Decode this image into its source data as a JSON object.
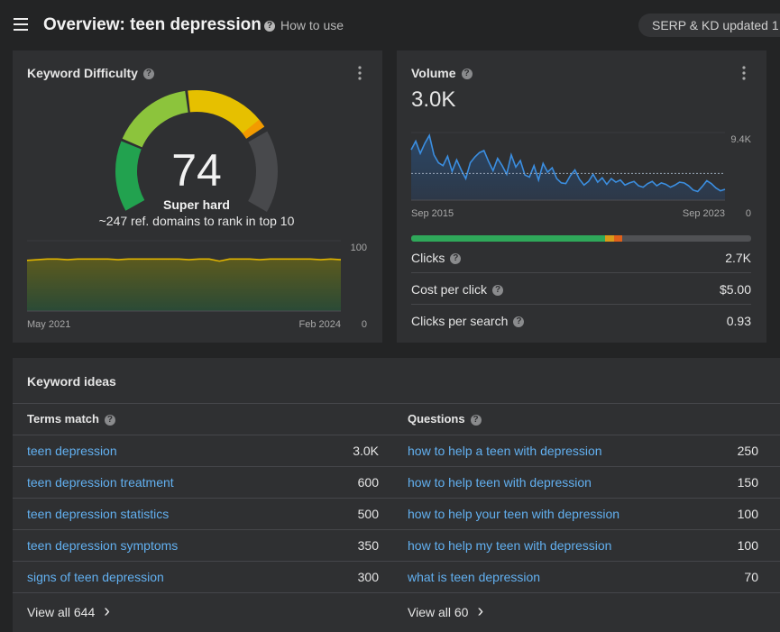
{
  "header": {
    "title": "Overview: teen depression",
    "help": "How to use",
    "status": "SERP & KD updated 1"
  },
  "kd": {
    "title": "Keyword Difficulty",
    "score": 74,
    "level": "Super hard",
    "note": "~247 ref. domains to rank in top 10",
    "chart": {
      "type": "line",
      "x_labels": [
        "May 2021",
        "Feb 2024"
      ],
      "ylim": [
        0,
        100
      ],
      "yticks": [
        0,
        100
      ],
      "color": "#e0b400",
      "values": [
        72,
        73,
        74,
        74,
        73,
        74,
        74,
        74,
        74,
        73,
        74,
        74,
        74,
        74,
        74,
        74,
        73,
        74,
        74,
        71,
        74,
        74,
        74,
        73,
        74,
        74,
        74,
        74,
        74,
        73,
        74,
        73
      ]
    }
  },
  "volume": {
    "title": "Volume",
    "value": "3.0K",
    "chart": {
      "type": "line",
      "x_labels": [
        "Sep 2015",
        "Sep 2023"
      ],
      "ylim": [
        0,
        9400
      ],
      "yticks": [
        0,
        {
          "value": 9400,
          "label": "9.4K"
        }
      ],
      "color": "#3b8ee0",
      "values": [
        7000,
        8200,
        6500,
        7900,
        9000,
        6300,
        5200,
        4800,
        6100,
        4000,
        5600,
        4200,
        3000,
        5200,
        6000,
        6600,
        6900,
        5400,
        4100,
        5800,
        4800,
        3600,
        6300,
        4600,
        5500,
        3500,
        3200,
        4800,
        2800,
        5100,
        3900,
        4500,
        3000,
        2400,
        2300,
        3400,
        4200,
        2900,
        2100,
        2600,
        3600,
        2500,
        3100,
        2200,
        3000,
        2500,
        2800,
        2100,
        2400,
        2600,
        2000,
        1800,
        2300,
        2600,
        2000,
        2400,
        2200,
        1800,
        2100,
        2500,
        2400,
        2000,
        1400,
        1200,
        1900,
        2700,
        2300,
        1700,
        1300,
        1500
      ]
    },
    "metrics": [
      {
        "label": "Clicks",
        "value": "2.7K"
      },
      {
        "label": "Cost per click",
        "value": "$5.00"
      },
      {
        "label": "Clicks per search",
        "value": "0.93"
      }
    ]
  },
  "ideas": {
    "title": "Keyword ideas",
    "columns": [
      {
        "title": "Terms match",
        "rows": [
          [
            "teen depression",
            "3.0K"
          ],
          [
            "teen depression treatment",
            "600"
          ],
          [
            "teen depression statistics",
            "500"
          ],
          [
            "teen depression symptoms",
            "350"
          ],
          [
            "signs of teen depression",
            "300"
          ]
        ],
        "view_all": "View all 644"
      },
      {
        "title": "Questions",
        "rows": [
          [
            "how to help a teen with depression",
            "250"
          ],
          [
            "how to help teen with depression",
            "150"
          ],
          [
            "how to help your teen with depression",
            "100"
          ],
          [
            "how to help my teen with depression",
            "100"
          ],
          [
            "what is teen depression",
            "70"
          ]
        ],
        "view_all": "View all 60"
      }
    ]
  }
}
